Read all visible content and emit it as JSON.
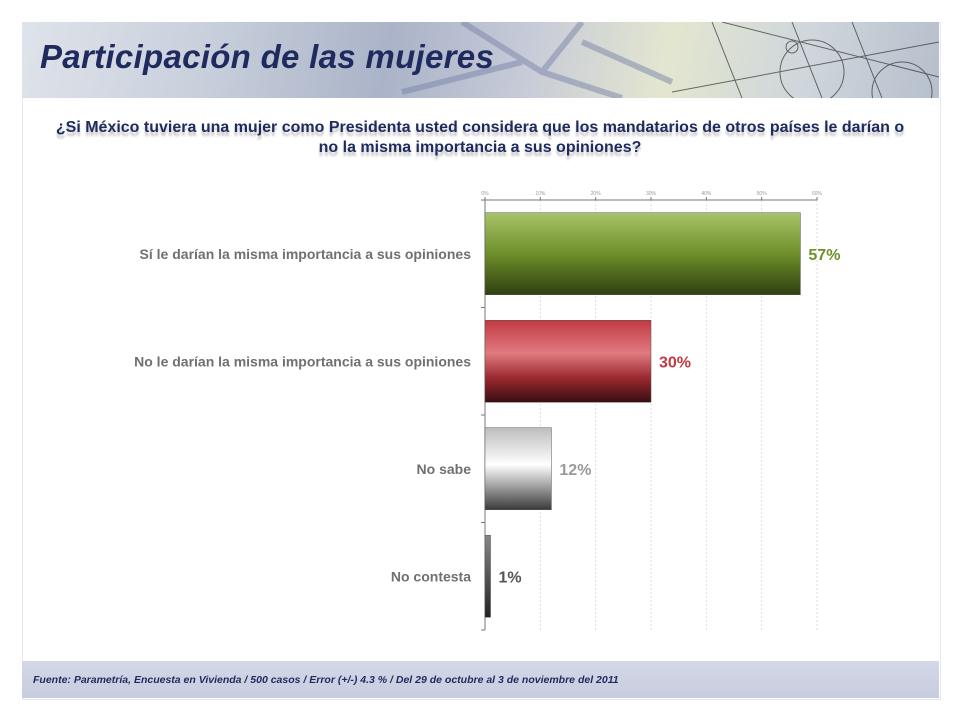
{
  "header": {
    "title": "Participación de las mujeres"
  },
  "question": "¿Si México tuviera una mujer como Presidenta usted considera que los mandatarios de otros países le darían o no la misma importancia a sus opiniones?",
  "footer": {
    "source": "Fuente: Parametría, Encuesta en Vivienda / 500 casos / Error (+/-) 4.3 % / Del 29 de octubre al 3 de noviembre del 2011"
  },
  "chart_data": {
    "type": "bar",
    "orientation": "horizontal",
    "title": "¿Si México tuviera una mujer como Presidenta usted considera que los mandatarios de otros países le darían o no la misma importancia a sus opiniones?",
    "categories": [
      "Sí le darían la misma importancia a sus opiniones",
      "No le darían la misma importancia a sus opiniones",
      "No sabe",
      "No contesta"
    ],
    "values": [
      57,
      30,
      12,
      1
    ],
    "labels": [
      "57%",
      "30%",
      "12%",
      "1%"
    ],
    "colors": [
      "#6e8f2a",
      "#b8323a",
      "#9a9a9a",
      "#555555"
    ],
    "xlim": [
      0,
      60
    ],
    "xticks": [
      "0%",
      "10%",
      "20%",
      "30%",
      "40%",
      "50%",
      "60%"
    ],
    "tick_values": [
      0,
      10,
      20,
      30,
      40,
      50,
      60
    ],
    "grid": true,
    "axis_position": "top"
  }
}
